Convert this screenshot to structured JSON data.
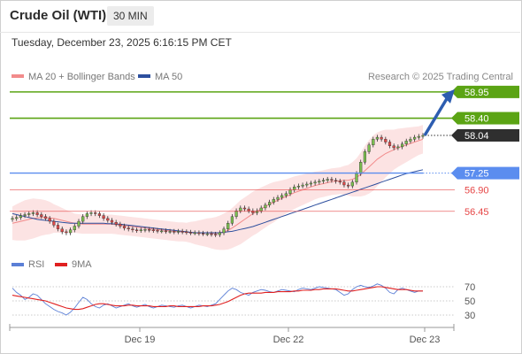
{
  "header": {
    "title": "Crude Oil (WTI)",
    "timeframe": "30 MIN"
  },
  "timestamp": "Tuesday, December 23, 2025 6:16:15 PM CET",
  "legend": {
    "ma20": {
      "label": "MA 20 + Bollinger Bands",
      "color": "#f28b8b"
    },
    "ma50": {
      "label": "MA 50",
      "color": "#2d4f9e"
    }
  },
  "credit": "Research © 2025 Trading Central",
  "rsi_legend": {
    "rsi": {
      "label": "RSI",
      "color": "#5b7fd6"
    },
    "ma": {
      "label": "9MA",
      "color": "#e02020"
    }
  },
  "chart_data": [
    {
      "type": "candlestick",
      "y_range": [
        55.5,
        59.3
      ],
      "levels": [
        {
          "value": 58.95,
          "label": "58.95",
          "kind": "target",
          "color": "#5ba414"
        },
        {
          "value": 58.4,
          "label": "58.40",
          "kind": "target",
          "color": "#5ba414"
        },
        {
          "value": 58.04,
          "label": "58.04",
          "kind": "last",
          "color": "#333333"
        },
        {
          "value": 57.25,
          "label": "57.25",
          "kind": "pivot",
          "color": "#5b8def"
        },
        {
          "value": 56.9,
          "label": "56.90",
          "kind": "support",
          "color": "#e64545"
        },
        {
          "value": 56.45,
          "label": "56.45",
          "kind": "support",
          "color": "#e64545"
        }
      ],
      "x_ticks": [
        "Dec 19",
        "Dec 22",
        "Dec 23"
      ],
      "closes": [
        56.3,
        56.32,
        56.36,
        56.38,
        56.4,
        56.42,
        56.38,
        56.34,
        56.3,
        56.24,
        56.16,
        56.08,
        56.02,
        56.0,
        56.06,
        56.14,
        56.24,
        56.34,
        56.4,
        56.42,
        56.4,
        56.36,
        56.3,
        56.26,
        56.22,
        56.18,
        56.14,
        56.1,
        56.08,
        56.06,
        56.05,
        56.06,
        56.07,
        56.06,
        56.05,
        56.04,
        56.04,
        56.03,
        56.03,
        56.02,
        56.03,
        56.02,
        56.01,
        56.0,
        56.0,
        55.99,
        55.98,
        55.98,
        55.97,
        55.96,
        56.0,
        56.08,
        56.2,
        56.34,
        56.46,
        56.52,
        56.5,
        56.46,
        56.42,
        56.46,
        56.52,
        56.58,
        56.64,
        56.7,
        56.74,
        56.78,
        56.82,
        56.9,
        56.96,
        56.98,
        57.0,
        57.02,
        57.04,
        57.06,
        57.08,
        57.1,
        57.12,
        57.1,
        57.08,
        57.06,
        57.0,
        56.98,
        57.06,
        57.24,
        57.48,
        57.7,
        57.84,
        57.96,
        58.0,
        57.96,
        57.9,
        57.82,
        57.78,
        57.8,
        57.86,
        57.92,
        57.96,
        58.0,
        58.02,
        58.04
      ],
      "ma20": [
        56.2,
        56.22,
        56.24,
        56.26,
        56.28,
        56.3,
        56.31,
        56.32,
        56.32,
        56.31,
        56.3,
        56.28,
        56.26,
        56.24,
        56.22,
        56.2,
        56.19,
        56.18,
        56.18,
        56.18,
        56.18,
        56.18,
        56.18,
        56.18,
        56.18,
        56.17,
        56.16,
        56.15,
        56.14,
        56.13,
        56.12,
        56.11,
        56.1,
        56.09,
        56.08,
        56.07,
        56.06,
        56.05,
        56.04,
        56.03,
        56.02,
        56.02,
        56.01,
        56.01,
        56.0,
        56.0,
        56.0,
        56.0,
        55.99,
        55.99,
        56.0,
        56.02,
        56.05,
        56.1,
        56.16,
        56.22,
        56.28,
        56.34,
        56.4,
        56.45,
        56.5,
        56.55,
        56.6,
        56.64,
        56.68,
        56.72,
        56.76,
        56.8,
        56.84,
        56.87,
        56.9,
        56.93,
        56.96,
        56.99,
        57.01,
        57.03,
        57.05,
        57.07,
        57.08,
        57.09,
        57.1,
        57.1,
        57.12,
        57.16,
        57.22,
        57.3,
        57.38,
        57.46,
        57.54,
        57.6,
        57.66,
        57.7,
        57.74,
        57.78,
        57.81,
        57.84,
        57.87,
        57.9,
        57.93,
        57.96
      ],
      "ma50": [
        56.4,
        56.38,
        56.36,
        56.34,
        56.32,
        56.3,
        56.28,
        56.27,
        56.26,
        56.25,
        56.24,
        56.23,
        56.22,
        56.21,
        56.2,
        56.2,
        56.2,
        56.2,
        56.2,
        56.2,
        56.2,
        56.2,
        56.2,
        56.19,
        56.19,
        56.18,
        56.18,
        56.17,
        56.16,
        56.15,
        56.14,
        56.13,
        56.12,
        56.11,
        56.1,
        56.09,
        56.08,
        56.07,
        56.06,
        56.05,
        56.04,
        56.03,
        56.02,
        56.01,
        56.0,
        56.0,
        56.0,
        56.0,
        56.0,
        56.0,
        56.0,
        56.01,
        56.02,
        56.03,
        56.05,
        56.07,
        56.09,
        56.11,
        56.13,
        56.16,
        56.19,
        56.22,
        56.25,
        56.28,
        56.31,
        56.34,
        56.37,
        56.4,
        56.43,
        56.46,
        56.49,
        56.52,
        56.55,
        56.58,
        56.61,
        56.64,
        56.67,
        56.7,
        56.73,
        56.76,
        56.79,
        56.82,
        56.85,
        56.88,
        56.91,
        56.94,
        56.97,
        57.0,
        57.03,
        57.06,
        57.09,
        57.12,
        57.15,
        57.18,
        57.21,
        57.24,
        57.26,
        57.28,
        57.3,
        57.32
      ],
      "band_halfwidth": [
        0.35,
        0.38,
        0.4,
        0.42,
        0.42,
        0.42,
        0.4,
        0.38,
        0.36,
        0.34,
        0.3,
        0.28,
        0.26,
        0.24,
        0.22,
        0.2,
        0.2,
        0.2,
        0.2,
        0.2,
        0.2,
        0.2,
        0.2,
        0.2,
        0.2,
        0.2,
        0.2,
        0.2,
        0.2,
        0.2,
        0.2,
        0.2,
        0.2,
        0.2,
        0.2,
        0.2,
        0.2,
        0.2,
        0.2,
        0.2,
        0.2,
        0.2,
        0.2,
        0.22,
        0.24,
        0.26,
        0.28,
        0.3,
        0.32,
        0.34,
        0.36,
        0.38,
        0.4,
        0.42,
        0.44,
        0.46,
        0.46,
        0.46,
        0.46,
        0.46,
        0.45,
        0.44,
        0.43,
        0.42,
        0.4,
        0.38,
        0.36,
        0.35,
        0.34,
        0.33,
        0.32,
        0.31,
        0.3,
        0.29,
        0.28,
        0.28,
        0.28,
        0.28,
        0.28,
        0.28,
        0.3,
        0.32,
        0.36,
        0.4,
        0.46,
        0.52,
        0.56,
        0.58,
        0.56,
        0.54,
        0.5,
        0.46,
        0.42,
        0.4,
        0.38,
        0.36,
        0.34,
        0.32,
        0.3,
        0.3
      ],
      "projection": {
        "from": 58.04,
        "to": 58.95
      }
    },
    {
      "type": "line",
      "name": "RSI",
      "y_ticks": [
        70,
        50,
        30
      ],
      "y_range": [
        20,
        80
      ],
      "rsi": [
        68,
        62,
        58,
        52,
        55,
        60,
        58,
        52,
        46,
        42,
        38,
        35,
        33,
        30,
        34,
        40,
        48,
        55,
        52,
        46,
        42,
        40,
        44,
        46,
        43,
        40,
        42,
        44,
        46,
        43,
        41,
        43,
        45,
        42,
        40,
        42,
        44,
        43,
        42,
        41,
        43,
        44,
        42,
        40,
        42,
        44,
        43,
        42,
        44,
        46,
        52,
        58,
        64,
        68,
        66,
        62,
        60,
        58,
        62,
        64,
        66,
        65,
        63,
        62,
        64,
        66,
        65,
        64,
        63,
        66,
        68,
        67,
        66,
        68,
        70,
        69,
        68,
        67,
        66,
        62,
        58,
        60,
        66,
        70,
        72,
        70,
        69,
        71,
        74,
        72,
        68,
        62,
        60,
        66,
        68,
        66,
        64,
        62,
        64,
        64
      ],
      "ma9": [
        58,
        57,
        56,
        55,
        54,
        53,
        52,
        51,
        50,
        48,
        46,
        44,
        42,
        40,
        39,
        38,
        38,
        39,
        41,
        43,
        45,
        46,
        46,
        45,
        44,
        43,
        43,
        43,
        44,
        44,
        43,
        43,
        43,
        43,
        42,
        42,
        42,
        42,
        43,
        43,
        42,
        42,
        42,
        42,
        42,
        42,
        43,
        43,
        43,
        44,
        45,
        47,
        49,
        52,
        55,
        58,
        60,
        61,
        61,
        61,
        61,
        62,
        62,
        62,
        63,
        63,
        63,
        63,
        64,
        64,
        65,
        65,
        65,
        66,
        66,
        67,
        67,
        67,
        67,
        66,
        65,
        64,
        64,
        65,
        66,
        67,
        68,
        69,
        70,
        70,
        69,
        68,
        67,
        66,
        66,
        66,
        65,
        64,
        64,
        64
      ]
    }
  ]
}
